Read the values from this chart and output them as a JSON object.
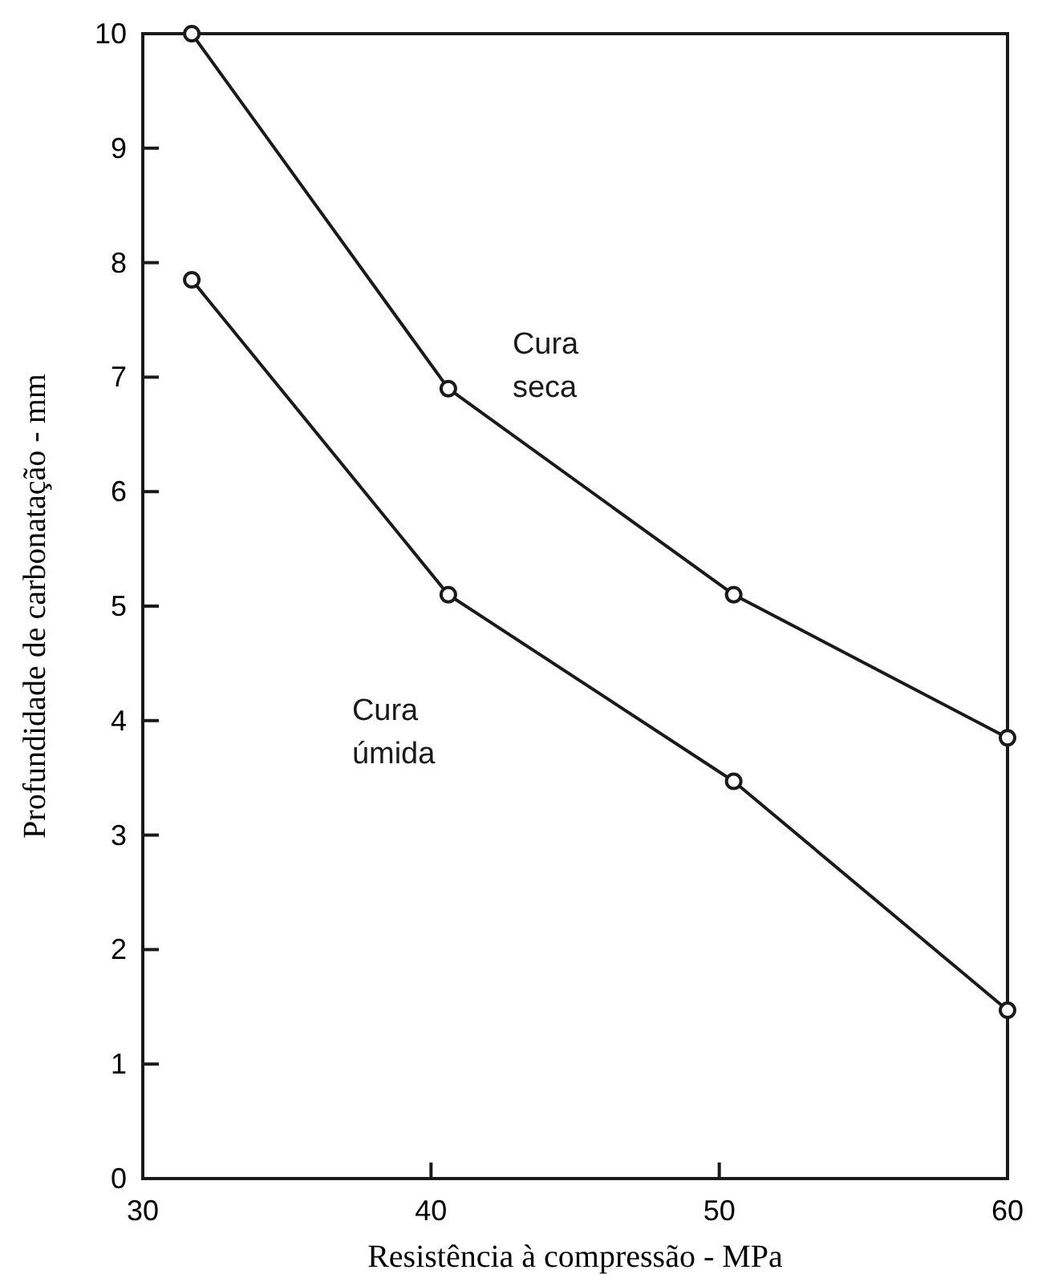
{
  "chart_data": {
    "type": "line",
    "xlabel": "Resistência à compressão - MPa",
    "ylabel": "Profundidade de carbonatação - mm",
    "xlim": [
      30,
      60
    ],
    "xticks": [
      30,
      40,
      50,
      60
    ],
    "ylim": [
      0,
      10
    ],
    "yticks": [
      0,
      1,
      2,
      3,
      4,
      5,
      6,
      7,
      8,
      9,
      10
    ],
    "grid": false,
    "marker": "circle",
    "line_style": "solid",
    "series": [
      {
        "name": "Cura seca",
        "color": "#1a1a1a",
        "x": [
          31.7,
          40.6,
          50.5,
          60
        ],
        "values": [
          10,
          6.9,
          5.1,
          3.85
        ]
      },
      {
        "name": "Cura úmida",
        "color": "#1a1a1a",
        "x": [
          31.7,
          40.6,
          50.5,
          60
        ],
        "values": [
          7.85,
          5.1,
          3.47,
          1.47
        ]
      }
    ]
  }
}
